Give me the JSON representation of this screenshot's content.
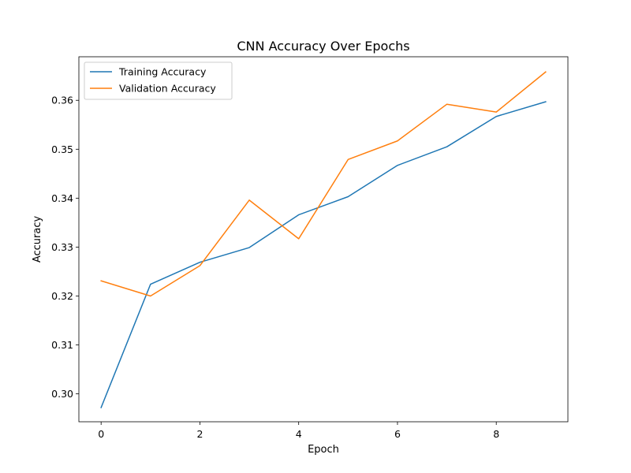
{
  "chart_data": {
    "type": "line",
    "title": "CNN Accuracy Over Epochs",
    "xlabel": "Epoch",
    "ylabel": "Accuracy",
    "xlim": [
      -0.45,
      9.45
    ],
    "ylim": [
      0.2943,
      0.3689
    ],
    "xticks": [
      0,
      2,
      4,
      6,
      8
    ],
    "xtick_labels": [
      "0",
      "2",
      "4",
      "6",
      "8"
    ],
    "yticks": [
      0.3,
      0.31,
      0.32,
      0.33,
      0.34,
      0.35,
      0.36
    ],
    "ytick_labels": [
      "0.30",
      "0.31",
      "0.32",
      "0.33",
      "0.34",
      "0.35",
      "0.36"
    ],
    "grid": false,
    "legend_position": "top-left",
    "x": [
      0,
      1,
      2,
      3,
      4,
      5,
      6,
      7,
      8,
      9
    ],
    "series": [
      {
        "name": "Training Accuracy",
        "color": "#1f77b4",
        "values": [
          0.2972,
          0.3224,
          0.3269,
          0.3299,
          0.3366,
          0.3403,
          0.3467,
          0.3505,
          0.3567,
          0.3597
        ]
      },
      {
        "name": "Validation Accuracy",
        "color": "#ff7f0e",
        "values": [
          0.3231,
          0.32,
          0.3262,
          0.3396,
          0.3317,
          0.3479,
          0.3517,
          0.3592,
          0.3576,
          0.3658
        ]
      }
    ]
  }
}
